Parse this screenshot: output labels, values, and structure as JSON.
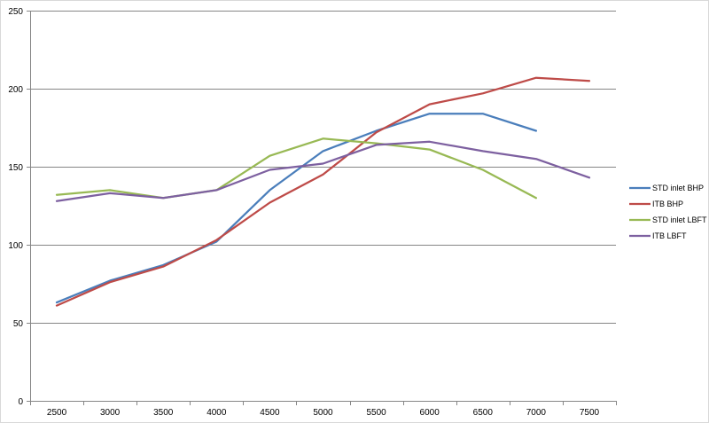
{
  "chart_data": {
    "type": "line",
    "title": "",
    "xlabel": "",
    "ylabel": "",
    "categories": [
      "2500",
      "3000",
      "3500",
      "4000",
      "4500",
      "5000",
      "5500",
      "6000",
      "6500",
      "7000",
      "7500"
    ],
    "ylim": [
      0,
      250
    ],
    "yticks": [
      0,
      50,
      100,
      150,
      200,
      250
    ],
    "grid": "horizontal",
    "legend_position": "right",
    "series": [
      {
        "name": "STD inlet BHP",
        "color": "#4a7ebb",
        "values": [
          63,
          77,
          87,
          102,
          135,
          160,
          173,
          184,
          184,
          173,
          null
        ]
      },
      {
        "name": "ITB BHP",
        "color": "#be4b48",
        "values": [
          61,
          76,
          86,
          103,
          127,
          145,
          172,
          190,
          197,
          207,
          205
        ]
      },
      {
        "name": "STD inlet LBFT",
        "color": "#98b954",
        "values": [
          132,
          135,
          130,
          135,
          157,
          168,
          165,
          161,
          148,
          130,
          null
        ]
      },
      {
        "name": "ITB LBFT",
        "color": "#7d60a0",
        "values": [
          128,
          133,
          130,
          135,
          148,
          152,
          164,
          166,
          160,
          155,
          143
        ]
      }
    ]
  }
}
